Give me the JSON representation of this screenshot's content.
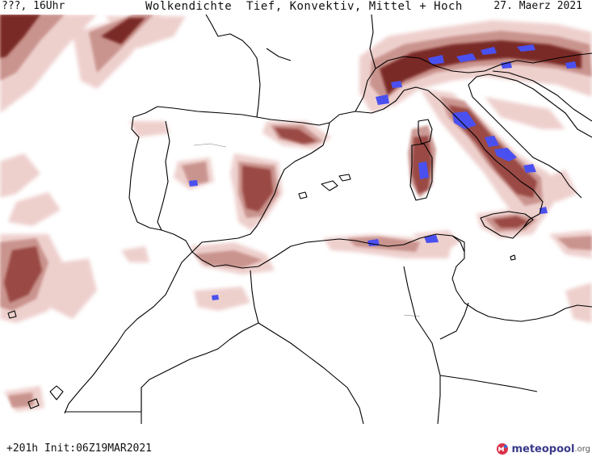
{
  "header": {
    "left_label": "???, 16Uhr",
    "title": "Wolkendichte  Tief, Konvektiv, Mittel + Hoch",
    "date": "27. Maerz 2021"
  },
  "footer": {
    "run_info": "+201h Init:06Z19MAR2021",
    "logo_name": "meteopool",
    "logo_suffix": ".org"
  },
  "map": {
    "region": "Western Mediterranean",
    "colors": {
      "cloud_light": "#e8c0bc",
      "cloud_medium": "#c48a84",
      "cloud_dense": "#9a4a44",
      "cloud_very_dense": "#7a2a28",
      "convective": "#4a50f0",
      "coastline": "#000000",
      "background": "#ffffff"
    }
  }
}
